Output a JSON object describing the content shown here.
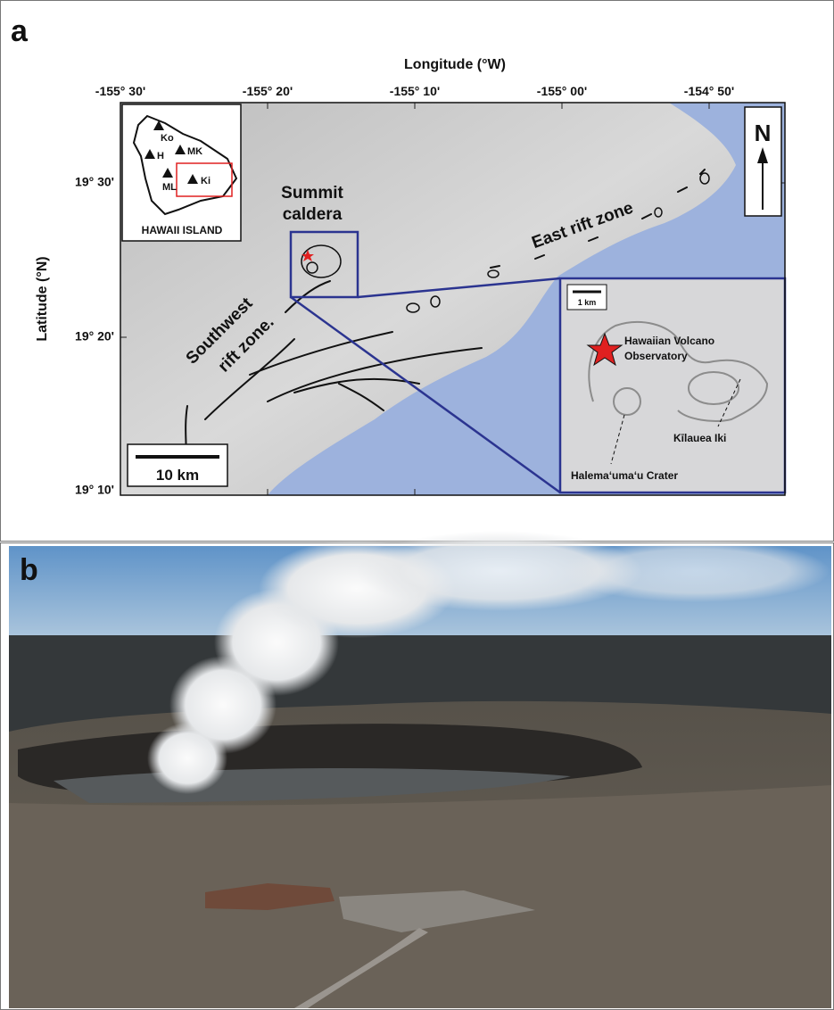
{
  "panel_a": {
    "label": "a",
    "x_axis_title": "Longitude (°W)",
    "x_ticks": [
      "-155° 30'",
      "-155° 20'",
      "-155° 10'",
      "-155° 00'",
      "-154° 50'"
    ],
    "y_axis_title": "Latitude (°N)",
    "y_ticks": [
      "19° 30'",
      "19° 20'",
      "19° 10'"
    ],
    "locator": {
      "title": "HAWAII ISLAND",
      "volcanoes": [
        "Ko",
        "H",
        "MK",
        "ML",
        "Ki"
      ]
    },
    "map_labels": {
      "summit_caldera": [
        "Summit",
        "caldera"
      ],
      "southwest_rift_zone": [
        "Southwest",
        "rift zone."
      ],
      "east_rift_zone": "East rift zone"
    },
    "north_arrow": "N",
    "scale_bar": "10 km",
    "zoom_inset": {
      "scale_bar": "1 km",
      "observatory": [
        "Hawaiian Volcano",
        "Observatory"
      ],
      "kilauea_iki": "Kīlauea  Iki",
      "halemaumau": "Halemaʻumaʻu Crater"
    }
  },
  "panel_b": {
    "label": "b"
  }
}
